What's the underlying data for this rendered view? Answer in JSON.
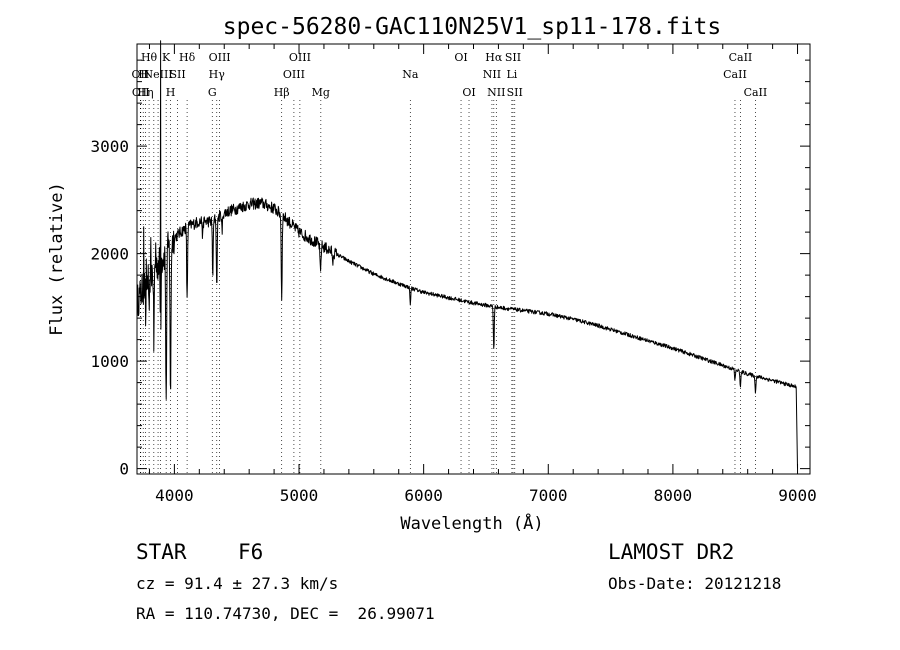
{
  "chart_data": {
    "type": "line",
    "title": "spec-56280-GAC110N25V1_sp11-178.fits",
    "xlabel": "Wavelength (Å)",
    "ylabel": "Flux (relative)",
    "xlim": [
      3700,
      9100
    ],
    "ylim": [
      -50,
      3950
    ],
    "x_ticks": [
      "4000",
      "5000",
      "6000",
      "7000",
      "8000",
      "9000"
    ],
    "x_tick_values": [
      4000,
      5000,
      6000,
      7000,
      8000,
      9000
    ],
    "y_ticks": [
      "0",
      "1000",
      "2000",
      "3000"
    ],
    "y_tick_values": [
      0,
      1000,
      2000,
      3000
    ],
    "grid": false,
    "series": [
      {
        "name": "spectrum",
        "continuum_x": [
          3700,
          3800,
          3900,
          4000,
          4100,
          4200,
          4300,
          4400,
          4500,
          4600,
          4700,
          4800,
          4900,
          5000,
          5200,
          5400,
          5600,
          5800,
          6000,
          6200,
          6400,
          6600,
          6800,
          7000,
          7200,
          7400,
          7600,
          7800,
          8000,
          8200,
          8400,
          8600,
          8800,
          8990
        ],
        "continuum_y": [
          1550,
          1800,
          1950,
          2150,
          2250,
          2300,
          2300,
          2380,
          2420,
          2460,
          2470,
          2420,
          2320,
          2200,
          2060,
          1930,
          1810,
          1720,
          1640,
          1590,
          1540,
          1500,
          1470,
          1440,
          1390,
          1330,
          1260,
          1190,
          1120,
          1040,
          960,
          880,
          820,
          760
        ],
        "absorption_lines": [
          {
            "x": 3934,
            "depth": 1500,
            "width": 5
          },
          {
            "x": 3969,
            "depth": 1500,
            "width": 5
          },
          {
            "x": 3889,
            "depth": 900,
            "width": 4
          },
          {
            "x": 3835,
            "depth": 700,
            "width": 4
          },
          {
            "x": 3798,
            "depth": 500,
            "width": 4
          },
          {
            "x": 3771,
            "depth": 400,
            "width": 4
          },
          {
            "x": 4102,
            "depth": 700,
            "width": 5
          },
          {
            "x": 4227,
            "depth": 150,
            "width": 4
          },
          {
            "x": 4308,
            "depth": 500,
            "width": 5
          },
          {
            "x": 4340,
            "depth": 650,
            "width": 5
          },
          {
            "x": 4383,
            "depth": 200,
            "width": 4
          },
          {
            "x": 4861,
            "depth": 800,
            "width": 5
          },
          {
            "x": 5172,
            "depth": 250,
            "width": 6
          },
          {
            "x": 5270,
            "depth": 120,
            "width": 4
          },
          {
            "x": 5893,
            "depth": 150,
            "width": 5
          },
          {
            "x": 6563,
            "depth": 400,
            "width": 5
          },
          {
            "x": 8498,
            "depth": 100,
            "width": 5
          },
          {
            "x": 8542,
            "depth": 150,
            "width": 5
          },
          {
            "x": 8662,
            "depth": 150,
            "width": 5
          }
        ],
        "emission_spikes": [
          {
            "x": 3888,
            "height": 3980
          },
          {
            "x": 3755,
            "height": 2250
          },
          {
            "x": 3810,
            "height": 2150
          },
          {
            "x": 3850,
            "height": 2100
          },
          {
            "x": 3775,
            "height": 1950
          }
        ],
        "end_drop": {
          "x": 9000,
          "value": 0
        }
      }
    ],
    "lines": [
      {
        "x": 3727,
        "row": 1,
        "label": "OII"
      },
      {
        "x": 3750,
        "row": 1,
        "label": "H"
      },
      {
        "x": 3730,
        "row": 2,
        "label": "OII"
      },
      {
        "x": 3768,
        "row": 2,
        "label": "Hη"
      },
      {
        "x": 3797,
        "row": 0,
        "label": "Hθ"
      },
      {
        "x": 3835,
        "row": 0,
        "label": ""
      },
      {
        "x": 3869,
        "row": 1,
        "label": "NeIII"
      },
      {
        "x": 3889,
        "row": 2,
        "label": ""
      },
      {
        "x": 3934,
        "row": 0,
        "label": "K"
      },
      {
        "x": 3969,
        "row": 2,
        "label": "H"
      },
      {
        "x": 4026,
        "row": 1,
        "label": "SII"
      },
      {
        "x": 4102,
        "row": 0,
        "label": "Hδ"
      },
      {
        "x": 4304,
        "row": 2,
        "label": "G"
      },
      {
        "x": 4340,
        "row": 1,
        "label": "Hγ"
      },
      {
        "x": 4363,
        "row": 0,
        "label": "OIII"
      },
      {
        "x": 4861,
        "row": 2,
        "label": "Hβ"
      },
      {
        "x": 4959,
        "row": 1,
        "label": "OIII"
      },
      {
        "x": 5007,
        "row": 0,
        "label": "OIII"
      },
      {
        "x": 5175,
        "row": 2,
        "label": "Mg"
      },
      {
        "x": 5893,
        "row": 1,
        "label": "Na"
      },
      {
        "x": 6300,
        "row": 0,
        "label": "OI"
      },
      {
        "x": 6364,
        "row": 2,
        "label": "OI"
      },
      {
        "x": 6548,
        "row": 1,
        "label": "NII"
      },
      {
        "x": 6563,
        "row": 0,
        "label": "Hα"
      },
      {
        "x": 6583,
        "row": 2,
        "label": "NII"
      },
      {
        "x": 6708,
        "row": 1,
        "label": "Li"
      },
      {
        "x": 6717,
        "row": 0,
        "label": "SII"
      },
      {
        "x": 6731,
        "row": 2,
        "label": "SII"
      },
      {
        "x": 8498,
        "row": 1,
        "label": "CaII"
      },
      {
        "x": 8542,
        "row": 0,
        "label": "CaII"
      },
      {
        "x": 8662,
        "row": 2,
        "label": "CaII"
      }
    ]
  },
  "footer": {
    "object_class": "STAR",
    "subclass": "F6",
    "survey": "LAMOST DR2",
    "redshift": "cz = 91.4 ± 27.3 km/s",
    "obs_date": "Obs-Date: 20121218",
    "coords": "RA = 110.74730, DEC =  26.99071"
  }
}
